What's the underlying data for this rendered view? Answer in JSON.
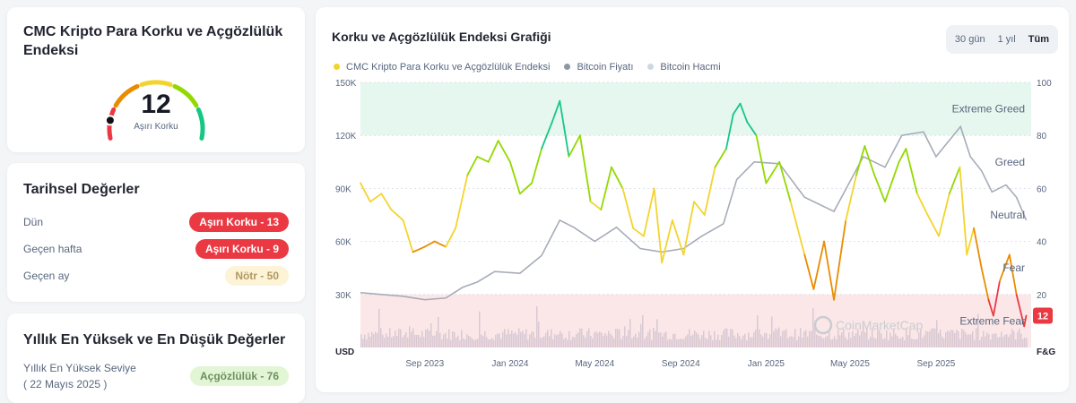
{
  "gauge": {
    "title": "CMC Kripto Para Korku ve Açgözlülük Endeksi",
    "value": "12",
    "label": "Aşırı Korku",
    "segment_colors": [
      "#ea3943",
      "#ea8c00",
      "#f3d42f",
      "#93d900",
      "#16c784"
    ]
  },
  "historical": {
    "title": "Tarihsel Değerler",
    "rows": [
      {
        "label": "Dün",
        "value": "Aşırı Korku - 13",
        "tone": "red"
      },
      {
        "label": "Geçen hafta",
        "value": "Aşırı Korku - 9",
        "tone": "red"
      },
      {
        "label": "Geçen ay",
        "value": "Nötr - 50",
        "tone": "yellow"
      }
    ]
  },
  "yearly": {
    "title": "Yıllık En Yüksek ve En Düşük Değerler",
    "rows": [
      {
        "label": "Yıllık En Yüksek Seviye",
        "date": "( 22 Mayıs 2025 )",
        "value": "Açgözlülük - 76",
        "tone": "green"
      }
    ]
  },
  "chart_panel": {
    "title": "Korku ve Açgözlülük Endeksi Grafiği",
    "ranges": [
      "30 gün",
      "1 yıl",
      "Tüm"
    ],
    "active_range": "Tüm",
    "legend": [
      {
        "label": "CMC Kripto Para Korku ve Açgözlülük Endeksi",
        "color": "#f3d42f"
      },
      {
        "label": "Bitcoin Fiyatı",
        "color": "#8f96a3"
      },
      {
        "label": "Bitcoin Hacmi",
        "color": "#cfd6e4"
      }
    ],
    "watermark": "CoinMarketCap"
  },
  "chart_data": {
    "type": "line",
    "x_range": [
      "2023-06-01",
      "2026-01-15"
    ],
    "x_ticks": [
      [
        "2023-09-01",
        "Sep 2023"
      ],
      [
        "2024-01-01",
        "Jan 2024"
      ],
      [
        "2024-05-01",
        "May 2024"
      ],
      [
        "2024-09-01",
        "Sep 2024"
      ],
      [
        "2025-01-01",
        "Jan 2025"
      ],
      [
        "2025-05-01",
        "May 2025"
      ],
      [
        "2025-09-01",
        "Sep 2025"
      ]
    ],
    "y_left": {
      "label": "USD",
      "range": [
        0,
        150000
      ],
      "ticks": [
        "30K",
        "60K",
        "90K",
        "120K",
        "150K"
      ]
    },
    "y_right": {
      "label": "F&G",
      "range": [
        0,
        100
      ],
      "ticks": [
        "20",
        "40",
        "60",
        "80",
        "100"
      ]
    },
    "zones": [
      {
        "label": "Extreme Greed",
        "from": 80,
        "to": 100,
        "color": "#e6f7ef"
      },
      {
        "label": "Greed",
        "from": 60,
        "to": 80
      },
      {
        "label": "Neutral",
        "from": 40,
        "to": 60
      },
      {
        "label": "Fear",
        "from": 20,
        "to": 40
      },
      {
        "label": "Extreme Fear",
        "from": 0,
        "to": 20,
        "color": "#fbe7e8"
      }
    ],
    "current_value": "12",
    "series": [
      {
        "name": "CMC Kripto Para Korku ve Açgözlülük Endeksi",
        "axis": "right",
        "points": [
          [
            "2023-06-01",
            62
          ],
          [
            "2023-06-15",
            55
          ],
          [
            "2023-07-01",
            58
          ],
          [
            "2023-07-15",
            52
          ],
          [
            "2023-08-01",
            48
          ],
          [
            "2023-08-15",
            36
          ],
          [
            "2023-09-01",
            38
          ],
          [
            "2023-09-15",
            40
          ],
          [
            "2023-10-01",
            38
          ],
          [
            "2023-10-15",
            45
          ],
          [
            "2023-11-01",
            65
          ],
          [
            "2023-11-15",
            72
          ],
          [
            "2023-12-01",
            70
          ],
          [
            "2023-12-15",
            78
          ],
          [
            "2024-01-01",
            70
          ],
          [
            "2024-01-15",
            58
          ],
          [
            "2024-02-01",
            62
          ],
          [
            "2024-02-15",
            75
          ],
          [
            "2024-03-01",
            85
          ],
          [
            "2024-03-12",
            93
          ],
          [
            "2024-03-25",
            72
          ],
          [
            "2024-04-10",
            80
          ],
          [
            "2024-04-25",
            55
          ],
          [
            "2024-05-10",
            52
          ],
          [
            "2024-05-25",
            68
          ],
          [
            "2024-06-10",
            60
          ],
          [
            "2024-06-25",
            45
          ],
          [
            "2024-07-10",
            42
          ],
          [
            "2024-07-25",
            60
          ],
          [
            "2024-08-05",
            32
          ],
          [
            "2024-08-20",
            48
          ],
          [
            "2024-09-05",
            35
          ],
          [
            "2024-09-20",
            55
          ],
          [
            "2024-10-05",
            50
          ],
          [
            "2024-10-20",
            68
          ],
          [
            "2024-11-05",
            75
          ],
          [
            "2024-11-15",
            88
          ],
          [
            "2024-11-25",
            92
          ],
          [
            "2024-12-05",
            85
          ],
          [
            "2024-12-18",
            80
          ],
          [
            "2025-01-01",
            62
          ],
          [
            "2025-01-20",
            70
          ],
          [
            "2025-02-05",
            55
          ],
          [
            "2025-02-25",
            35
          ],
          [
            "2025-03-10",
            22
          ],
          [
            "2025-03-25",
            40
          ],
          [
            "2025-04-08",
            18
          ],
          [
            "2025-04-25",
            48
          ],
          [
            "2025-05-10",
            65
          ],
          [
            "2025-05-22",
            76
          ],
          [
            "2025-06-05",
            65
          ],
          [
            "2025-06-20",
            55
          ],
          [
            "2025-07-10",
            70
          ],
          [
            "2025-07-20",
            75
          ],
          [
            "2025-08-05",
            58
          ],
          [
            "2025-08-20",
            50
          ],
          [
            "2025-09-05",
            42
          ],
          [
            "2025-09-20",
            58
          ],
          [
            "2025-10-05",
            68
          ],
          [
            "2025-10-15",
            35
          ],
          [
            "2025-10-25",
            45
          ],
          [
            "2025-11-05",
            30
          ],
          [
            "2025-11-15",
            18
          ],
          [
            "2025-11-22",
            12
          ],
          [
            "2025-12-01",
            25
          ],
          [
            "2025-12-15",
            35
          ],
          [
            "2025-12-25",
            20
          ],
          [
            "2026-01-05",
            8
          ],
          [
            "2026-01-08",
            12
          ]
        ]
      },
      {
        "name": "Bitcoin Fiyatı",
        "axis": "left",
        "points": [
          [
            "2023-06-01",
            31000
          ],
          [
            "2023-07-01",
            30000
          ],
          [
            "2023-08-01",
            29000
          ],
          [
            "2023-09-01",
            27000
          ],
          [
            "2023-10-01",
            28000
          ],
          [
            "2023-10-25",
            34000
          ],
          [
            "2023-11-15",
            37000
          ],
          [
            "2023-12-10",
            43000
          ],
          [
            "2024-01-15",
            42000
          ],
          [
            "2024-02-15",
            52000
          ],
          [
            "2024-03-12",
            72000
          ],
          [
            "2024-04-01",
            68000
          ],
          [
            "2024-05-01",
            60000
          ],
          [
            "2024-06-01",
            68000
          ],
          [
            "2024-07-05",
            56000
          ],
          [
            "2024-08-05",
            54000
          ],
          [
            "2024-09-05",
            56000
          ],
          [
            "2024-10-01",
            63000
          ],
          [
            "2024-11-01",
            70000
          ],
          [
            "2024-11-20",
            95000
          ],
          [
            "2024-12-15",
            105000
          ],
          [
            "2025-01-20",
            104000
          ],
          [
            "2025-02-25",
            85000
          ],
          [
            "2025-04-08",
            77000
          ],
          [
            "2025-05-20",
            108000
          ],
          [
            "2025-06-20",
            102000
          ],
          [
            "2025-07-14",
            120000
          ],
          [
            "2025-08-14",
            122000
          ],
          [
            "2025-09-01",
            108000
          ],
          [
            "2025-10-06",
            125000
          ],
          [
            "2025-10-20",
            108000
          ],
          [
            "2025-11-05",
            100000
          ],
          [
            "2025-11-20",
            88000
          ],
          [
            "2025-12-10",
            92000
          ],
          [
            "2025-12-25",
            85000
          ],
          [
            "2026-01-08",
            72000
          ]
        ]
      }
    ]
  }
}
